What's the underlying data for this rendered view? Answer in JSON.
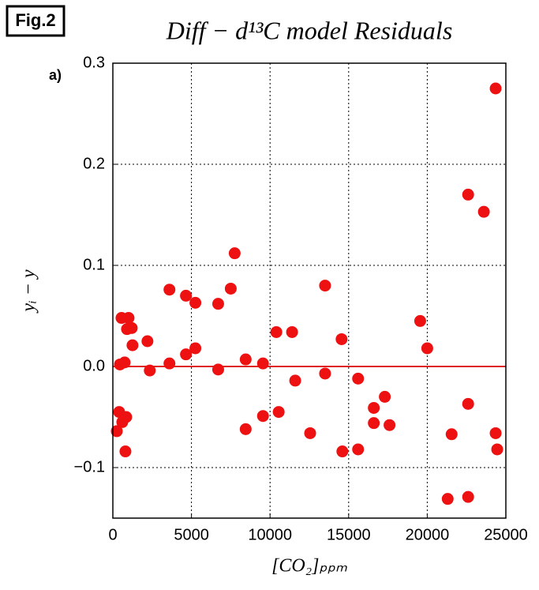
{
  "chart_data": {
    "type": "scatter",
    "title": "Diff − d¹³C model Residuals",
    "figure_label": "Fig.2",
    "panel_label": "a)",
    "x_label": "[CO₂]ₚₚₘ",
    "y_label": "yᵢ − y",
    "xlim": [
      0,
      25000
    ],
    "xticks": [
      0,
      5000,
      10000,
      15000,
      20000,
      25000
    ],
    "ylim": [
      -0.15,
      0.3
    ],
    "yticks": [
      {
        "value": -0.1,
        "label": "−0.1"
      },
      {
        "value": 0,
        "label": "0.0"
      },
      0.1,
      0.2,
      0.3
    ],
    "grid": true,
    "hline": 0,
    "hline_color": "#e02020",
    "color": "#ee1111",
    "x": [
      250,
      400,
      450,
      600,
      550,
      750,
      850,
      800,
      900,
      1000,
      1200,
      1250,
      2200,
      2350,
      3600,
      3600,
      4650,
      4650,
      5250,
      5250,
      6700,
      6700,
      7500,
      7750,
      8450,
      8450,
      9550,
      9550,
      10400,
      10550,
      11400,
      11600,
      12550,
      13500,
      13500,
      14550,
      14600,
      15600,
      15600,
      16600,
      16600,
      17300,
      17600,
      19550,
      20000,
      21300,
      21550,
      22600,
      22600,
      22600,
      23600,
      24350,
      24350,
      24450
    ],
    "values": [
      -0.064,
      -0.045,
      0.002,
      -0.055,
      0.048,
      0.004,
      -0.05,
      -0.084,
      0.037,
      0.048,
      0.038,
      0.021,
      0.025,
      -0.004,
      0.076,
      0.003,
      0.07,
      0.012,
      0.063,
      0.018,
      0.062,
      -0.003,
      0.077,
      0.112,
      0.007,
      -0.062,
      0.003,
      -0.049,
      0.034,
      -0.045,
      0.034,
      -0.014,
      -0.066,
      0.08,
      -0.007,
      0.027,
      -0.084,
      -0.012,
      -0.082,
      -0.041,
      -0.056,
      -0.03,
      -0.058,
      0.045,
      0.018,
      -0.131,
      -0.067,
      -0.037,
      0.17,
      -0.129,
      0.153,
      0.275,
      -0.066,
      -0.082
    ]
  }
}
